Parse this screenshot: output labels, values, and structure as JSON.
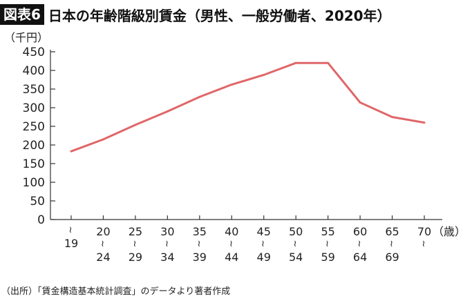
{
  "figure_label": "図表6",
  "title": "日本の年齢階級別賃金（男性、一般労働者、2020年）",
  "source": "（出所）「賃金構造基本統計調査」のデータより著者作成",
  "chart_data": {
    "type": "line",
    "title": "日本の年齢階級別賃金（男性、一般労働者、2020年）",
    "ylabel": "（千円）",
    "xlabel": "（歳）",
    "ylim": [
      0,
      450
    ],
    "yticks": [
      0,
      50,
      100,
      150,
      200,
      250,
      300,
      350,
      400,
      450
    ],
    "grid": false,
    "line_color": "#e06668",
    "categories": [
      {
        "top": "",
        "bottom": "19"
      },
      {
        "top": "20",
        "bottom": "24"
      },
      {
        "top": "25",
        "bottom": "29"
      },
      {
        "top": "30",
        "bottom": "34"
      },
      {
        "top": "35",
        "bottom": "39"
      },
      {
        "top": "40",
        "bottom": "44"
      },
      {
        "top": "45",
        "bottom": "49"
      },
      {
        "top": "50",
        "bottom": "54"
      },
      {
        "top": "55",
        "bottom": "59"
      },
      {
        "top": "60",
        "bottom": "64"
      },
      {
        "top": "65",
        "bottom": "69"
      },
      {
        "top": "70",
        "bottom": ""
      }
    ],
    "values": [
      183,
      215,
      254,
      290,
      329,
      362,
      388,
      420,
      420,
      314,
      275,
      260
    ]
  }
}
